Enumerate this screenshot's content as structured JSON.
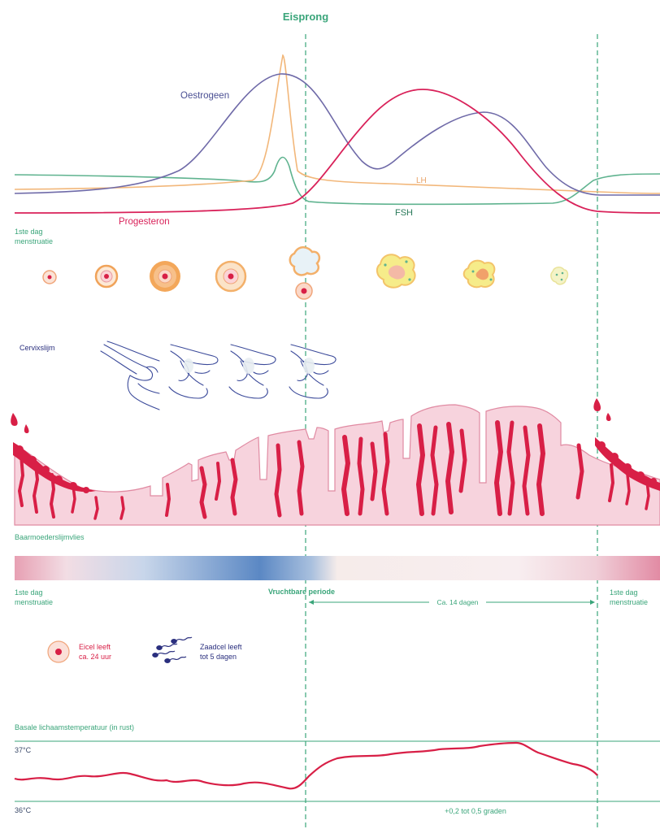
{
  "title": "Eisprong",
  "hormones": {
    "oestrogeen": "Oestrogeen",
    "lh": "LH",
    "fsh": "FSH",
    "progesteron": "Progesteron"
  },
  "labels": {
    "first_day_top_line1": "1ste dag",
    "first_day_top_line2": "menstruatie",
    "cervix": "Cervixslijm",
    "endometrium": "Baarmoederslijmvlies",
    "first_day_left_line1": "1ste dag",
    "first_day_left_line2": "menstruatie",
    "fertile": "Vruchtbare periode",
    "fourteen_days": "Ca. 14 dagen",
    "first_day_right_line1": "1ste dag",
    "first_day_right_line2": "menstruatie"
  },
  "legend": {
    "egg_line1": "Eicel leeft",
    "egg_line2": "ca. 24 uur",
    "sperm_line1": "Zaadcel leeft",
    "sperm_line2": "tot 5 dagen"
  },
  "temperature": {
    "title": "Basale lichaamstemperatuur (in rust)",
    "high": "37°C",
    "low": "36°C",
    "delta": "+0,2 tot 0,5 graden"
  },
  "colors": {
    "oestrogeen": "#6f6aa8",
    "lh": "#f2b77a",
    "fsh": "#5fb38f",
    "progesteron": "#d9225a",
    "accent_green": "#3aa57a",
    "endometrium_fill": "#f7d3dd",
    "endometrium_stroke": "#e08aa2",
    "vessel": "#d81f46",
    "sperm": "#2a2f7e"
  }
}
